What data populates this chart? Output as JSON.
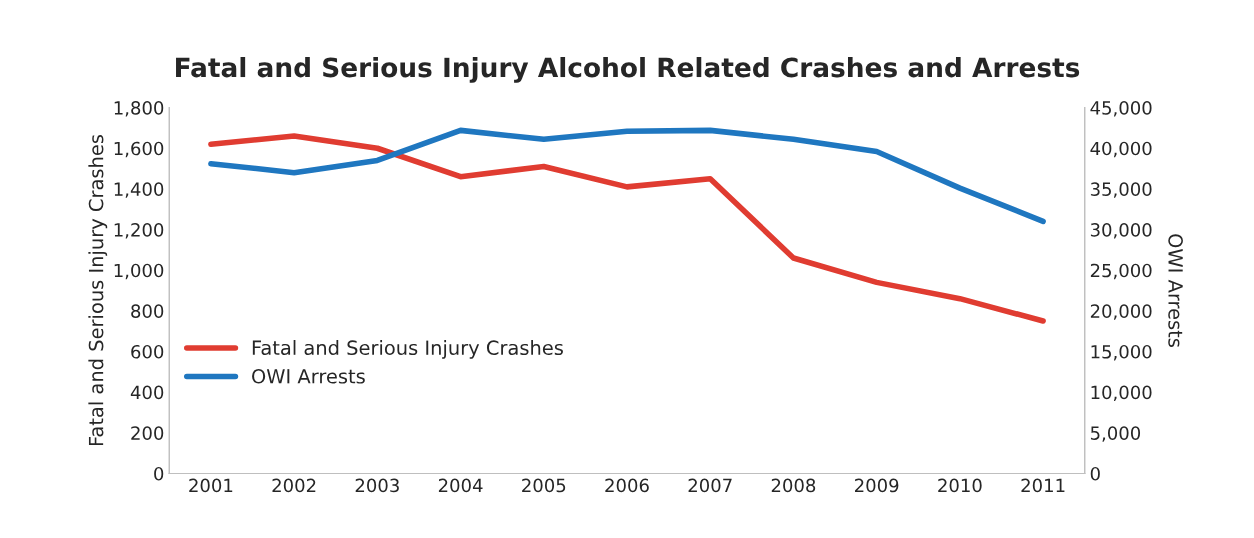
{
  "chart_data": {
    "type": "line",
    "title": "Fatal and Serious Injury Alcohol Related Crashes and Arrests",
    "ylabel": "Fatal and Serious Injury Crashes",
    "y2label": "OWI Arrests",
    "categories": [
      "2001",
      "2002",
      "2003",
      "2004",
      "2005",
      "2006",
      "2007",
      "2008",
      "2009",
      "2010",
      "2011"
    ],
    "series": [
      {
        "name": "Fatal and Serious Injury Crashes",
        "color": "#e03c31",
        "values": [
          1620,
          1660,
          1600,
          1460,
          1510,
          1410,
          1450,
          1060,
          940,
          860,
          750
        ]
      },
      {
        "name": "OWI Arrests",
        "color": "#1f77c0",
        "axis": "y2",
        "values": [
          38100,
          37000,
          38500,
          42200,
          41100,
          42100,
          42200,
          41100,
          39600,
          35100,
          31000
        ]
      }
    ],
    "ylim": [
      0,
      1800
    ],
    "yticks": [
      {
        "value": 0,
        "label": "0"
      },
      {
        "value": 200,
        "label": "200"
      },
      {
        "value": 400,
        "label": "400"
      },
      {
        "value": 600,
        "label": "600"
      },
      {
        "value": 800,
        "label": "800"
      },
      {
        "value": 1000,
        "label": "1,000"
      },
      {
        "value": 1200,
        "label": "1,200"
      },
      {
        "value": 1400,
        "label": "1,400"
      },
      {
        "value": 1600,
        "label": "1,600"
      },
      {
        "value": 1800,
        "label": "1,800"
      }
    ],
    "y2lim": [
      0,
      45000
    ],
    "y2ticks": [
      {
        "value": 0,
        "label": "0"
      },
      {
        "value": 5000,
        "label": "5,000"
      },
      {
        "value": 10000,
        "label": "10,000"
      },
      {
        "value": 15000,
        "label": "15,000"
      },
      {
        "value": 20000,
        "label": "20,000"
      },
      {
        "value": 25000,
        "label": "25,000"
      },
      {
        "value": 30000,
        "label": "30,000"
      },
      {
        "value": 35000,
        "label": "35,000"
      },
      {
        "value": 40000,
        "label": "40,000"
      },
      {
        "value": 45000,
        "label": "45,000"
      }
    ],
    "legend": "left",
    "grid": false,
    "marker": "none",
    "line_style": "solid"
  }
}
